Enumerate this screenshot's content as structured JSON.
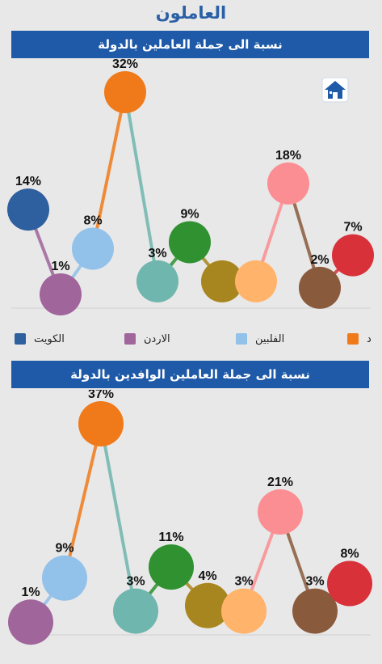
{
  "page": {
    "title": "العاملون"
  },
  "colors": {
    "header_bg": "#1e5aa8",
    "title": "#2a5fa6",
    "bubbles": [
      "#2e5f9e",
      "#a0659b",
      "#92c1ea",
      "#f07a1a",
      "#6fb6ae",
      "#2f9130",
      "#a8861f",
      "#ffb36b",
      "#fb8e93",
      "#8a5a3c",
      "#d8313a"
    ]
  },
  "legend": [
    {
      "label": "الكويت",
      "color": "#2e5f9e"
    },
    {
      "label": "الاردن",
      "color": "#a0659b"
    },
    {
      "label": "الفلبين",
      "color": "#92c1ea"
    },
    {
      "label": "د",
      "color": "#f07a1a"
    }
  ],
  "chart_data": [
    {
      "type": "line",
      "title": "نسبة الى جملة العاملين بالدولة",
      "unit": "%",
      "values": [
        14,
        1,
        8,
        32,
        3,
        9,
        3,
        3,
        18,
        2,
        7
      ],
      "labels": [
        "14%",
        "1%",
        "8%",
        "32%",
        "3%",
        "9%",
        "",
        "",
        "18%",
        "2%",
        "7%"
      ],
      "grid": false
    },
    {
      "type": "line",
      "title": "نسبة الى جملة العاملين الوافدين بالدولة",
      "unit": "%",
      "values": [
        1,
        9,
        37,
        3,
        11,
        4,
        3,
        21,
        3,
        8
      ],
      "labels": [
        "1%",
        "9%",
        "37%",
        "3%",
        "11%",
        "4%",
        "3%",
        "21%",
        "3%",
        "8%"
      ],
      "grid": false
    }
  ]
}
